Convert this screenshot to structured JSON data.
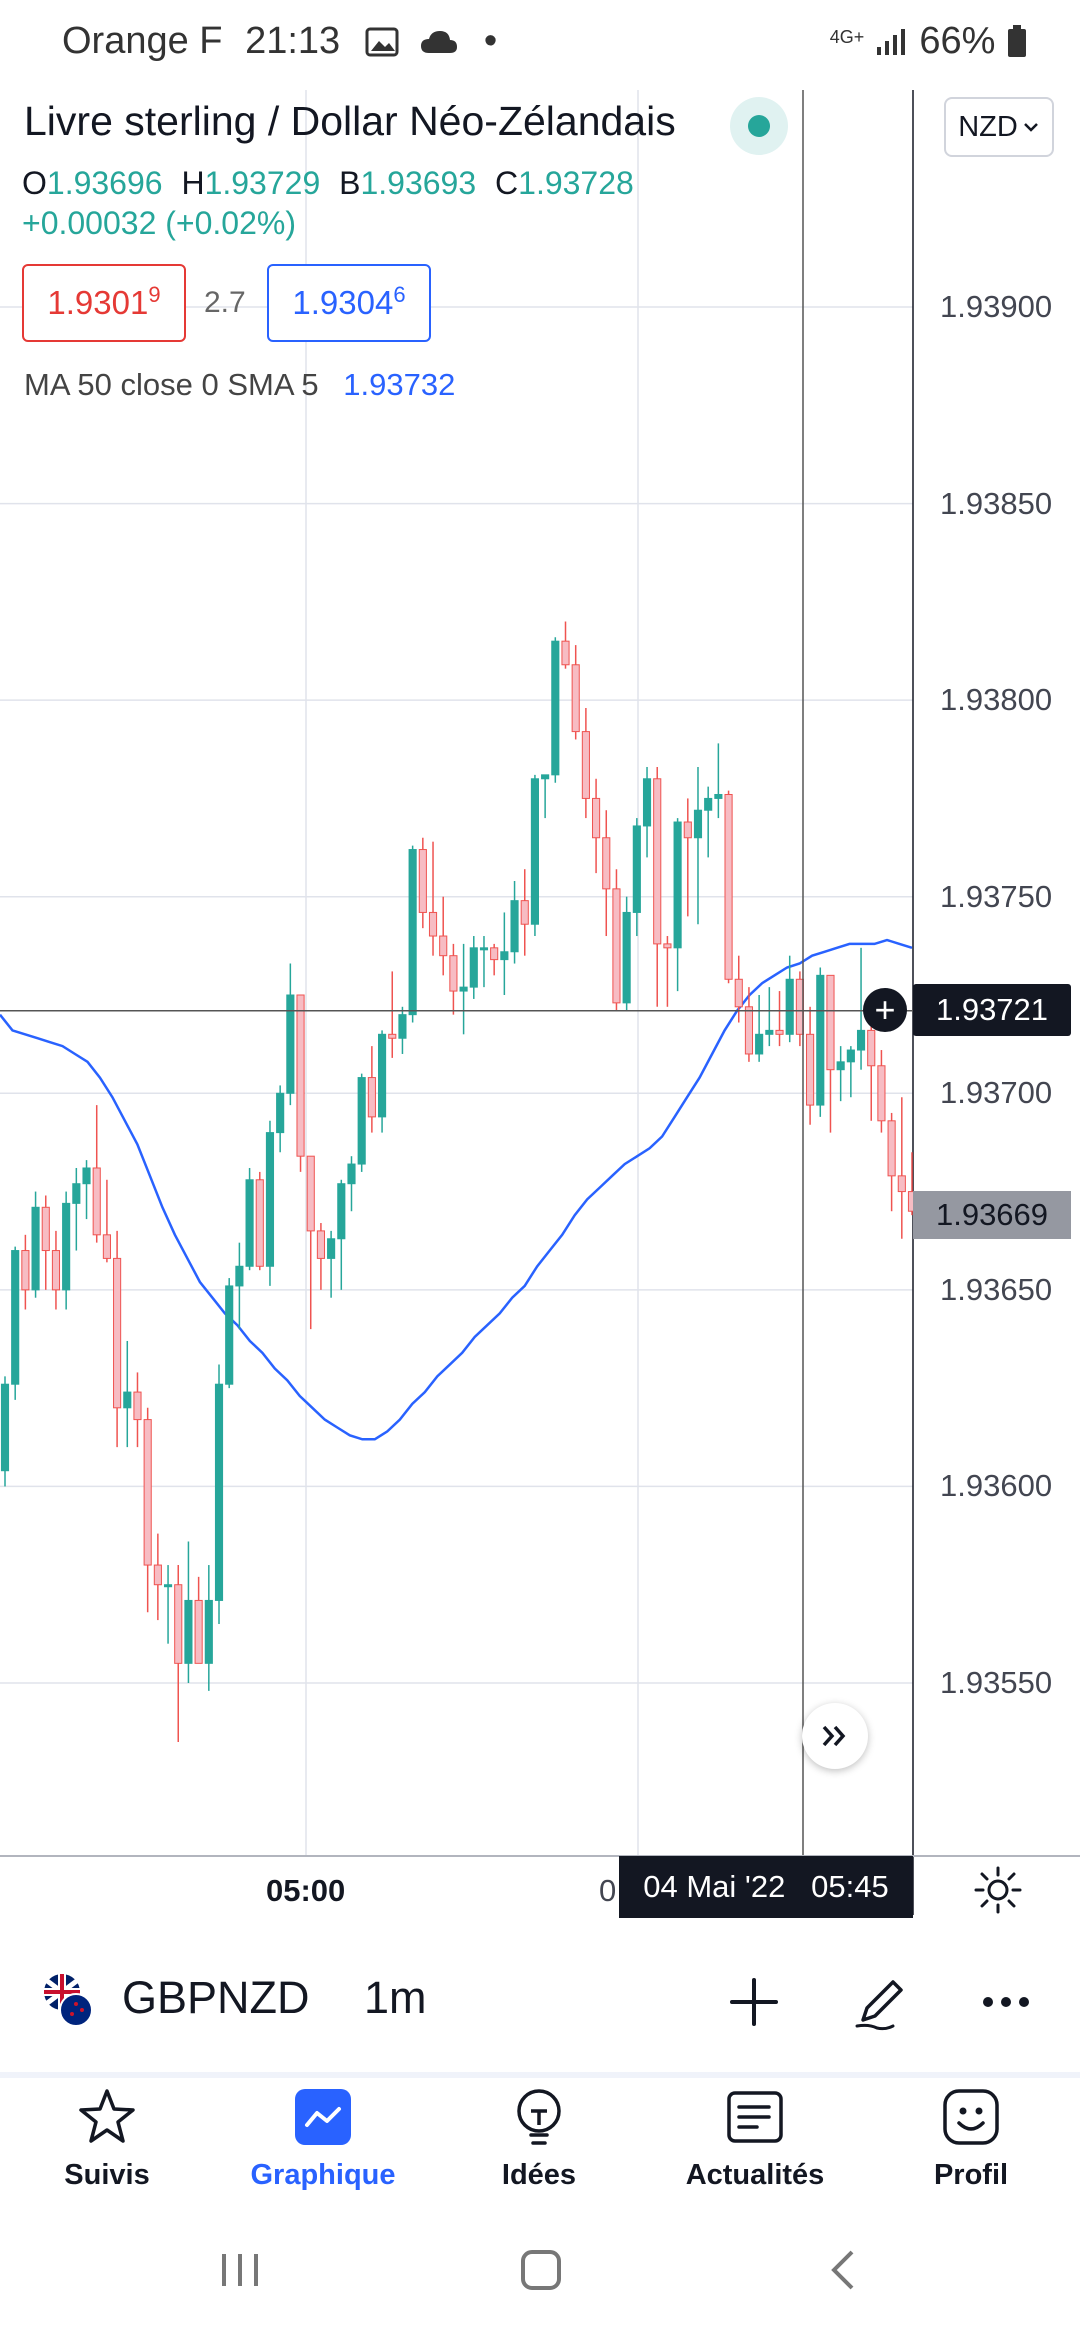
{
  "status_bar": {
    "carrier": "Orange F",
    "time": "21:13",
    "network": "4G+",
    "battery": "66%"
  },
  "header": {
    "title": "Livre sterling / Dollar Néo-Zélandais",
    "currency_button": "NZD",
    "ohlc": {
      "o_label": "O",
      "o": "1.93696",
      "h_label": "H",
      "h": "1.93729",
      "b_label": "B",
      "b": "1.93693",
      "c_label": "C",
      "c": "1.93728"
    },
    "change": "+0.00032 (+0.02%)",
    "sell_price_main": "1.9301",
    "sell_price_pip": "9",
    "spread": "2.7",
    "buy_price_main": "1.9304",
    "buy_price_pip": "6",
    "ma_label": "MA 50 close 0 SMA 5",
    "ma_value": "1.93732"
  },
  "chart_data": {
    "type": "candlestick",
    "y_ticks": [
      "1.93900",
      "1.93850",
      "1.93800",
      "1.93750",
      "1.93700",
      "1.93650",
      "1.93600",
      "1.93550"
    ],
    "ylim": [
      1.9353,
      1.9394
    ],
    "x_ticks": [
      "05:00",
      "0"
    ],
    "crosshair_price": "1.93721",
    "crosshair_time": "04 Mai '22   05:45",
    "last_price": "1.93669",
    "colors": {
      "up": "#26a69a",
      "down": "#ef5350",
      "ma": "#2962ff"
    },
    "candles": [
      [
        1.93604,
        1.93628,
        1.936,
        1.93626
      ],
      [
        1.93626,
        1.93661,
        1.93622,
        1.9366
      ],
      [
        1.9366,
        1.93664,
        1.93645,
        1.9365
      ],
      [
        1.9365,
        1.93675,
        1.93648,
        1.93671
      ],
      [
        1.93671,
        1.93674,
        1.9365,
        1.9366
      ],
      [
        1.9366,
        1.93665,
        1.93645,
        1.9365
      ],
      [
        1.9365,
        1.93675,
        1.93645,
        1.93672
      ],
      [
        1.93672,
        1.93681,
        1.9366,
        1.93677
      ],
      [
        1.93677,
        1.93683,
        1.93668,
        1.93681
      ],
      [
        1.93681,
        1.93697,
        1.93662,
        1.93664
      ],
      [
        1.93664,
        1.93678,
        1.93657,
        1.93658
      ],
      [
        1.93658,
        1.93665,
        1.9361,
        1.9362
      ],
      [
        1.9362,
        1.93637,
        1.9361,
        1.93624
      ],
      [
        1.93624,
        1.93629,
        1.9361,
        1.93617
      ],
      [
        1.93617,
        1.9362,
        1.93568,
        1.9358
      ],
      [
        1.9358,
        1.93588,
        1.93566,
        1.93575
      ],
      [
        1.93575,
        1.9358,
        1.9356,
        1.93575
      ],
      [
        1.93575,
        1.9358,
        1.93535,
        1.93555
      ],
      [
        1.93555,
        1.93586,
        1.9355,
        1.93571
      ],
      [
        1.93571,
        1.93577,
        1.93555,
        1.93555
      ],
      [
        1.93555,
        1.9358,
        1.93548,
        1.93571
      ],
      [
        1.93571,
        1.93631,
        1.93565,
        1.93626
      ],
      [
        1.93626,
        1.93653,
        1.93625,
        1.93651
      ],
      [
        1.93651,
        1.93662,
        1.9364,
        1.93656
      ],
      [
        1.93656,
        1.93681,
        1.93655,
        1.93678
      ],
      [
        1.93678,
        1.9368,
        1.93655,
        1.93656
      ],
      [
        1.93656,
        1.93693,
        1.93651,
        1.9369
      ],
      [
        1.9369,
        1.93702,
        1.93685,
        1.937
      ],
      [
        1.937,
        1.93733,
        1.93697,
        1.93725
      ],
      [
        1.93725,
        1.93725,
        1.9368,
        1.93684
      ],
      [
        1.93684,
        1.93684,
        1.9364,
        1.93665
      ],
      [
        1.93665,
        1.93667,
        1.9365,
        1.93658
      ],
      [
        1.93658,
        1.93665,
        1.93648,
        1.93663
      ],
      [
        1.93663,
        1.93678,
        1.9365,
        1.93677
      ],
      [
        1.93677,
        1.93684,
        1.9367,
        1.93682
      ],
      [
        1.93682,
        1.93705,
        1.9368,
        1.93704
      ],
      [
        1.93704,
        1.93712,
        1.9369,
        1.93694
      ],
      [
        1.93694,
        1.93716,
        1.9369,
        1.93715
      ],
      [
        1.93715,
        1.93731,
        1.93709,
        1.93714
      ],
      [
        1.93714,
        1.93722,
        1.9371,
        1.9372
      ],
      [
        1.9372,
        1.93763,
        1.93718,
        1.93762
      ],
      [
        1.93762,
        1.93765,
        1.93742,
        1.93746
      ],
      [
        1.93746,
        1.93764,
        1.93735,
        1.9374
      ],
      [
        1.9374,
        1.9375,
        1.9373,
        1.93735
      ],
      [
        1.93735,
        1.93738,
        1.9372,
        1.93726
      ],
      [
        1.93726,
        1.93738,
        1.93715,
        1.93727
      ],
      [
        1.93727,
        1.9374,
        1.93724,
        1.93737
      ],
      [
        1.93737,
        1.9374,
        1.93727,
        1.93737
      ],
      [
        1.93737,
        1.93738,
        1.9373,
        1.93734
      ],
      [
        1.93734,
        1.93746,
        1.93725,
        1.93736
      ],
      [
        1.93736,
        1.93754,
        1.93733,
        1.93749
      ],
      [
        1.93749,
        1.93757,
        1.93735,
        1.93743
      ],
      [
        1.93743,
        1.93781,
        1.9374,
        1.9378
      ],
      [
        1.9378,
        1.93781,
        1.9377,
        1.93781
      ],
      [
        1.93781,
        1.93816,
        1.93779,
        1.93815
      ],
      [
        1.93815,
        1.9382,
        1.93808,
        1.93809
      ],
      [
        1.93809,
        1.93814,
        1.9379,
        1.93792
      ],
      [
        1.93792,
        1.93798,
        1.9377,
        1.93775
      ],
      [
        1.93775,
        1.9378,
        1.93756,
        1.93765
      ],
      [
        1.93765,
        1.93772,
        1.9374,
        1.93752
      ],
      [
        1.93752,
        1.93757,
        1.93721,
        1.93723
      ],
      [
        1.93723,
        1.9375,
        1.93721,
        1.93746
      ],
      [
        1.93746,
        1.9377,
        1.9374,
        1.93768
      ],
      [
        1.93768,
        1.93783,
        1.9376,
        1.9378
      ],
      [
        1.9378,
        1.93783,
        1.93722,
        1.93738
      ],
      [
        1.93738,
        1.9374,
        1.93722,
        1.93737
      ],
      [
        1.93737,
        1.9377,
        1.93726,
        1.93769
      ],
      [
        1.93769,
        1.93775,
        1.93745,
        1.93765
      ],
      [
        1.93765,
        1.93783,
        1.93743,
        1.93772
      ],
      [
        1.93772,
        1.93778,
        1.9376,
        1.93775
      ],
      [
        1.93775,
        1.93789,
        1.9377,
        1.93776
      ],
      [
        1.93776,
        1.93777,
        1.93728,
        1.93729
      ],
      [
        1.93729,
        1.93735,
        1.93718,
        1.93722
      ],
      [
        1.93722,
        1.93727,
        1.93708,
        1.9371
      ],
      [
        1.9371,
        1.93725,
        1.93708,
        1.93715
      ],
      [
        1.93715,
        1.93727,
        1.93712,
        1.93716
      ],
      [
        1.93716,
        1.93726,
        1.93712,
        1.93715
      ],
      [
        1.93715,
        1.93735,
        1.93713,
        1.93729
      ],
      [
        1.93729,
        1.93731,
        1.93712,
        1.93715
      ],
      [
        1.93715,
        1.93722,
        1.93692,
        1.93697
      ],
      [
        1.93697,
        1.93732,
        1.93694,
        1.9373
      ],
      [
        1.9373,
        1.9373,
        1.9369,
        1.93706
      ],
      [
        1.93706,
        1.93712,
        1.93698,
        1.93708
      ],
      [
        1.93708,
        1.93712,
        1.93699,
        1.93711
      ],
      [
        1.93711,
        1.93737,
        1.93706,
        1.93716
      ],
      [
        1.93716,
        1.93719,
        1.93693,
        1.93707
      ],
      [
        1.93707,
        1.93711,
        1.9369,
        1.93693
      ],
      [
        1.93693,
        1.93695,
        1.9367,
        1.93679
      ],
      [
        1.93679,
        1.93699,
        1.93663,
        1.93675
      ],
      [
        1.93675,
        1.93685,
        1.93669,
        1.9367
      ]
    ],
    "ma_series": [
      1.9372,
      1.93716,
      1.93715,
      1.93714,
      1.93713,
      1.93712,
      1.9371,
      1.93708,
      1.93704,
      1.93699,
      1.93693,
      1.93687,
      1.93679,
      1.93671,
      1.93664,
      1.93658,
      1.93652,
      1.93648,
      1.93644,
      1.93641,
      1.93637,
      1.93634,
      1.9363,
      1.93627,
      1.93623,
      1.9362,
      1.93617,
      1.93615,
      1.93613,
      1.93612,
      1.93612,
      1.93614,
      1.93617,
      1.93621,
      1.93624,
      1.93628,
      1.93631,
      1.93634,
      1.93638,
      1.93641,
      1.93644,
      1.93648,
      1.93651,
      1.93656,
      1.9366,
      1.93664,
      1.93669,
      1.93673,
      1.93676,
      1.93679,
      1.93682,
      1.93684,
      1.93686,
      1.93689,
      1.93694,
      1.93699,
      1.93704,
      1.9371,
      1.93716,
      1.93721,
      1.93725,
      1.93728,
      1.9373,
      1.93732,
      1.93733,
      1.93735,
      1.93736,
      1.93737,
      1.93738,
      1.93738,
      1.93738,
      1.93739,
      1.93738,
      1.93737
    ]
  },
  "symbol_bar": {
    "symbol": "GBPNZD",
    "interval": "1m"
  },
  "bottom_nav": [
    {
      "label": "Suivis",
      "icon": "star-icon"
    },
    {
      "label": "Graphique",
      "icon": "chart-icon",
      "active": true
    },
    {
      "label": "Idées",
      "icon": "lightbulb-icon"
    },
    {
      "label": "Actualités",
      "icon": "news-icon"
    },
    {
      "label": "Profil",
      "icon": "smiley-icon"
    }
  ]
}
